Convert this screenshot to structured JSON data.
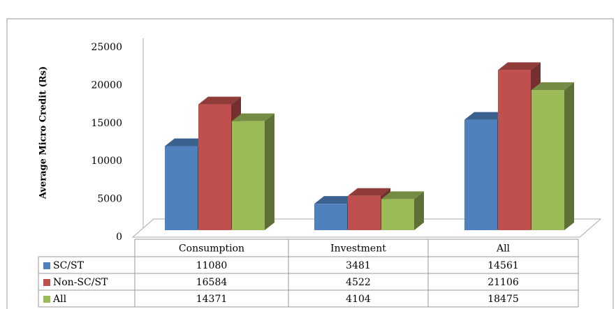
{
  "chart_data": {
    "type": "bar3d",
    "y_axis_label": "Average Micro Credit (Rs)",
    "categories": [
      "Consumption",
      "Investment",
      "All"
    ],
    "series": [
      {
        "name": "SC/ST",
        "color": "#4f81bd",
        "values": [
          11080,
          3481,
          14561
        ]
      },
      {
        "name": "Non-SC/ST",
        "color": "#c0504d",
        "values": [
          16584,
          4522,
          21106
        ]
      },
      {
        "name": "All",
        "color": "#9bbb59",
        "values": [
          14371,
          4104,
          18475
        ]
      }
    ],
    "ylim": [
      0,
      25000
    ],
    "yticks": [
      0,
      5000,
      10000,
      15000,
      20000,
      25000
    ],
    "grid": false
  }
}
